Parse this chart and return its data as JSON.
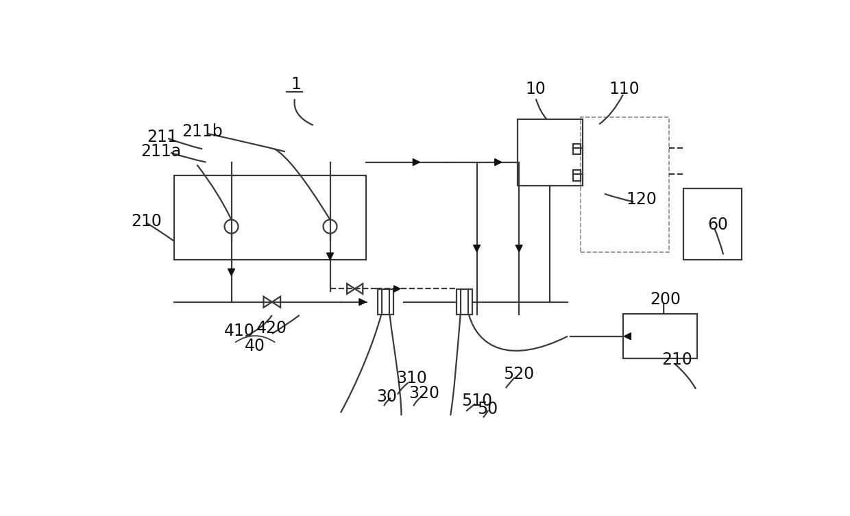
{
  "bg_color": "#ffffff",
  "lc": "#3a3a3a",
  "ac": "#111111",
  "lw": 1.6,
  "fs": 17,
  "fig_w": 12.4,
  "fig_h": 7.53
}
